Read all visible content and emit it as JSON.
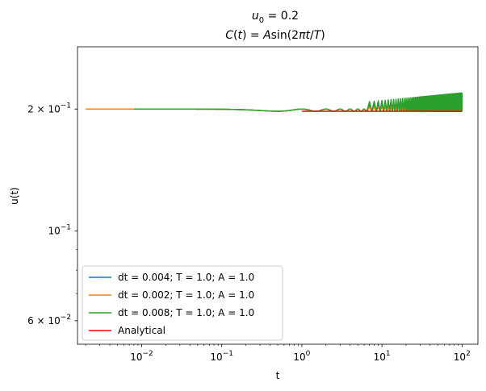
{
  "chart_data": {
    "type": "line",
    "title": {
      "line1": {
        "base": "u",
        "sub": "0",
        "rest": " = 0.2"
      },
      "line2": {
        "pre": "C",
        "paren_open": "(",
        "t": "t",
        "paren_mid": ") = ",
        "A": "A",
        "fn": "sin",
        "inner_open": "(2",
        "pi": "π",
        "tt": "t",
        "slash": "/",
        "T": "T",
        "close": ")"
      }
    },
    "xlabel": "t",
    "ylabel": "u(t)",
    "xscale": "log",
    "yscale": "log",
    "xlim": [
      0.00158,
      158
    ],
    "ylim": [
      0.0525,
      0.285
    ],
    "grid": false,
    "legend_position": "lower-left",
    "x_ticks": [
      {
        "value": 0.01,
        "base": "10",
        "exp": "−2"
      },
      {
        "value": 0.1,
        "base": "10",
        "exp": "−1"
      },
      {
        "value": 1,
        "base": "10",
        "exp": "0"
      },
      {
        "value": 10,
        "base": "10",
        "exp": "1"
      },
      {
        "value": 100,
        "base": "10",
        "exp": "2"
      }
    ],
    "y_ticks": [
      {
        "value": 0.2,
        "mant": "2 × ",
        "base": "10",
        "exp": "−1"
      },
      {
        "value": 0.1,
        "mant": "",
        "base": "10",
        "exp": "−1"
      },
      {
        "value": 0.06,
        "mant": "6 × ",
        "base": "10",
        "exp": "−2"
      }
    ],
    "series": [
      {
        "name": "dt = 0.004; T = 1.0; A = 1.0",
        "color": "#1f77b4",
        "dt": 0.004,
        "T": 1.0,
        "A": 1.0,
        "t_start": 0.004
      },
      {
        "name": "dt = 0.002; T = 1.0; A = 1.0",
        "color": "#ff7f0e",
        "dt": 0.002,
        "T": 1.0,
        "A": 1.0,
        "t_start": 0.002
      },
      {
        "name": "dt = 0.008; T = 1.0; A = 1.0",
        "color": "#2ca02c",
        "dt": 0.008,
        "T": 1.0,
        "A": 1.0,
        "t_start": 0.008
      },
      {
        "name": "Analytical",
        "color": "#ff0000",
        "t_start": 1.0,
        "t_end": 100
      }
    ],
    "u0": 0.2,
    "t_end": 100
  }
}
